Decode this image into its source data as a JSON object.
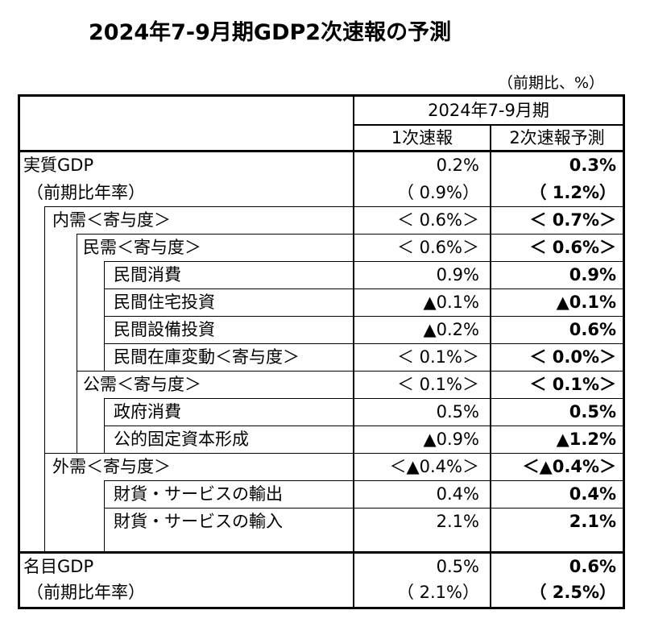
{
  "title": "2024年7-9月期GDP2次速報の予測",
  "unit_note": "（前期比、%）",
  "header": {
    "period": "2024年7-9月期",
    "col1": "1次速報",
    "col2": "2次速報予測"
  },
  "rows": [
    {
      "label": "実質GDP",
      "v1": "0.2%",
      "v2": "0.3%"
    },
    {
      "label": "（前期比年率）",
      "v1": "（ 0.9%）",
      "v2": "（ 1.2%）"
    },
    {
      "label": "内需＜寄与度＞",
      "v1": "＜ 0.6%＞",
      "v2": "＜ 0.7%＞"
    },
    {
      "label": "民需＜寄与度＞",
      "v1": "＜ 0.6%＞",
      "v2": "＜ 0.6%＞"
    },
    {
      "label": "民間消費",
      "v1": "0.9%",
      "v2": "0.9%"
    },
    {
      "label": "民間住宅投資",
      "v1": "▲0.1%",
      "v2": "▲0.1%"
    },
    {
      "label": "民間設備投資",
      "v1": "▲0.2%",
      "v2": "0.6%"
    },
    {
      "label": "民間在庫変動＜寄与度＞",
      "v1": "＜ 0.1%＞",
      "v2": "＜ 0.0%＞"
    },
    {
      "label": "公需＜寄与度＞",
      "v1": "＜ 0.1%＞",
      "v2": "＜ 0.1%＞"
    },
    {
      "label": "政府消費",
      "v1": "0.5%",
      "v2": "0.5%"
    },
    {
      "label": "公的固定資本形成",
      "v1": "▲0.9%",
      "v2": "▲1.2%"
    },
    {
      "label": "外需＜寄与度＞",
      "v1": "＜▲0.4%＞",
      "v2": "＜▲0.4%＞"
    },
    {
      "label": "財貨・サービスの輸出",
      "v1": "0.4%",
      "v2": "0.4%"
    },
    {
      "label": "財貨・サービスの輸入",
      "v1": "2.1%",
      "v2": "2.1%"
    },
    {
      "label": "名目GDP",
      "v1": "0.5%",
      "v2": "0.6%"
    },
    {
      "label": "（前期比年率）",
      "v1": "（ 2.1%）",
      "v2": "（ 2.5%）"
    }
  ]
}
